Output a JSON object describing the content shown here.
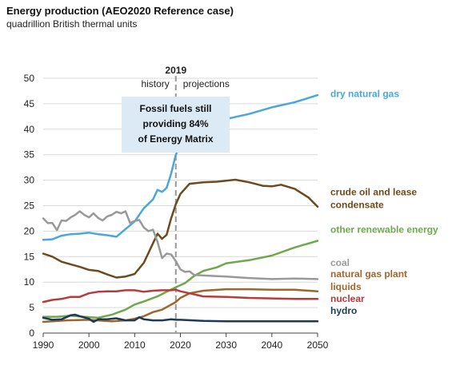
{
  "title": "Energy production (AEO2020 Reference case)",
  "subtitle": "quadrillion British thermal units",
  "divider": {
    "year_label": "2019",
    "left_label": "history",
    "right_label": "projections"
  },
  "callout": {
    "lines": [
      "Fossil fuels still",
      "providing 84%",
      "of Energy Matrix"
    ],
    "color": "#dceaf6"
  },
  "chart_data": {
    "type": "line",
    "title": "Energy production (AEO2020 Reference case)",
    "ylabel": "quadrillion British thermal units",
    "xlim": [
      1990,
      2050
    ],
    "ylim": [
      0,
      50
    ],
    "xticks": [
      1990,
      2000,
      2010,
      2020,
      2030,
      2040,
      2050
    ],
    "yticks": [
      0,
      5,
      10,
      15,
      20,
      25,
      30,
      35,
      40,
      45,
      50
    ],
    "grid": true,
    "divider_x": 2019,
    "series": [
      {
        "name": "dry natural gas",
        "color": "#4aa8d8",
        "points": [
          [
            1990,
            18.3
          ],
          [
            1992,
            18.4
          ],
          [
            1994,
            19.1
          ],
          [
            1996,
            19.4
          ],
          [
            1998,
            19.5
          ],
          [
            2000,
            19.7
          ],
          [
            2002,
            19.4
          ],
          [
            2004,
            19.2
          ],
          [
            2006,
            18.9
          ],
          [
            2008,
            20.4
          ],
          [
            2010,
            21.9
          ],
          [
            2012,
            24.5
          ],
          [
            2014,
            26.2
          ],
          [
            2015,
            28.1
          ],
          [
            2016,
            27.7
          ],
          [
            2017,
            28.5
          ],
          [
            2018,
            31.4
          ],
          [
            2019,
            35.0
          ],
          [
            2020,
            37.0
          ],
          [
            2022,
            39.0
          ],
          [
            2025,
            40.5
          ],
          [
            2030,
            42.0
          ],
          [
            2035,
            43.0
          ],
          [
            2040,
            44.3
          ],
          [
            2045,
            45.3
          ],
          [
            2050,
            46.7
          ]
        ]
      },
      {
        "name": "crude oil and lease condensate",
        "color": "#6b4a1c",
        "points": [
          [
            1990,
            15.6
          ],
          [
            1992,
            15.0
          ],
          [
            1994,
            14.0
          ],
          [
            1996,
            13.5
          ],
          [
            1998,
            13.0
          ],
          [
            2000,
            12.4
          ],
          [
            2002,
            12.2
          ],
          [
            2004,
            11.5
          ],
          [
            2006,
            10.9
          ],
          [
            2008,
            11.1
          ],
          [
            2010,
            11.6
          ],
          [
            2012,
            13.8
          ],
          [
            2014,
            17.6
          ],
          [
            2015,
            19.5
          ],
          [
            2016,
            18.5
          ],
          [
            2017,
            19.3
          ],
          [
            2018,
            22.6
          ],
          [
            2019,
            25.3
          ],
          [
            2020,
            27.3
          ],
          [
            2022,
            29.3
          ],
          [
            2025,
            29.6
          ],
          [
            2028,
            29.7
          ],
          [
            2030,
            29.9
          ],
          [
            2032,
            30.1
          ],
          [
            2035,
            29.6
          ],
          [
            2038,
            28.9
          ],
          [
            2040,
            28.8
          ],
          [
            2042,
            29.1
          ],
          [
            2045,
            28.3
          ],
          [
            2048,
            26.6
          ],
          [
            2050,
            24.8
          ]
        ]
      },
      {
        "name": "other renewable energy",
        "color": "#6fa84a",
        "points": [
          [
            1990,
            3.2
          ],
          [
            1993,
            3.2
          ],
          [
            1996,
            3.4
          ],
          [
            1999,
            3.2
          ],
          [
            2002,
            3.0
          ],
          [
            2005,
            3.6
          ],
          [
            2008,
            4.6
          ],
          [
            2010,
            5.6
          ],
          [
            2012,
            6.2
          ],
          [
            2015,
            7.2
          ],
          [
            2017,
            8.1
          ],
          [
            2019,
            9.0
          ],
          [
            2021,
            9.8
          ],
          [
            2023,
            11.2
          ],
          [
            2025,
            12.2
          ],
          [
            2028,
            12.9
          ],
          [
            2030,
            13.7
          ],
          [
            2035,
            14.3
          ],
          [
            2040,
            15.2
          ],
          [
            2045,
            16.8
          ],
          [
            2050,
            18.1
          ]
        ]
      },
      {
        "name": "coal",
        "color": "#999999",
        "points": [
          [
            1990,
            22.5
          ],
          [
            1991,
            21.6
          ],
          [
            1992,
            21.6
          ],
          [
            1993,
            20.2
          ],
          [
            1994,
            22.1
          ],
          [
            1995,
            22.0
          ],
          [
            1996,
            22.7
          ],
          [
            1997,
            23.2
          ],
          [
            1998,
            23.9
          ],
          [
            1999,
            23.2
          ],
          [
            2000,
            22.7
          ],
          [
            2001,
            23.5
          ],
          [
            2002,
            22.6
          ],
          [
            2003,
            22.1
          ],
          [
            2004,
            22.9
          ],
          [
            2005,
            23.2
          ],
          [
            2006,
            23.8
          ],
          [
            2007,
            23.5
          ],
          [
            2008,
            23.9
          ],
          [
            2009,
            21.6
          ],
          [
            2010,
            22.0
          ],
          [
            2011,
            22.2
          ],
          [
            2012,
            20.7
          ],
          [
            2013,
            20.0
          ],
          [
            2014,
            20.3
          ],
          [
            2015,
            17.9
          ],
          [
            2016,
            14.7
          ],
          [
            2017,
            15.6
          ],
          [
            2018,
            15.4
          ],
          [
            2019,
            14.1
          ],
          [
            2020,
            12.5
          ],
          [
            2021,
            12.0
          ],
          [
            2022,
            12.1
          ],
          [
            2023,
            11.4
          ],
          [
            2025,
            11.3
          ],
          [
            2030,
            11.1
          ],
          [
            2035,
            10.8
          ],
          [
            2040,
            10.6
          ],
          [
            2045,
            10.7
          ],
          [
            2050,
            10.6
          ]
        ]
      },
      {
        "name": "natural gas plant liquids",
        "color": "#a0652a",
        "points": [
          [
            1990,
            2.2
          ],
          [
            1995,
            2.5
          ],
          [
            2000,
            2.6
          ],
          [
            2005,
            2.3
          ],
          [
            2008,
            2.5
          ],
          [
            2010,
            2.8
          ],
          [
            2012,
            3.3
          ],
          [
            2014,
            4.1
          ],
          [
            2016,
            4.6
          ],
          [
            2018,
            5.6
          ],
          [
            2019,
            6.1
          ],
          [
            2020,
            6.9
          ],
          [
            2022,
            7.8
          ],
          [
            2025,
            8.3
          ],
          [
            2030,
            8.6
          ],
          [
            2035,
            8.6
          ],
          [
            2040,
            8.5
          ],
          [
            2045,
            8.5
          ],
          [
            2050,
            8.2
          ]
        ]
      },
      {
        "name": "nuclear",
        "color": "#b83b3b",
        "points": [
          [
            1990,
            6.1
          ],
          [
            1992,
            6.5
          ],
          [
            1994,
            6.7
          ],
          [
            1996,
            7.1
          ],
          [
            1998,
            7.1
          ],
          [
            2000,
            7.8
          ],
          [
            2002,
            8.1
          ],
          [
            2004,
            8.2
          ],
          [
            2006,
            8.2
          ],
          [
            2008,
            8.4
          ],
          [
            2010,
            8.4
          ],
          [
            2012,
            8.1
          ],
          [
            2014,
            8.3
          ],
          [
            2016,
            8.4
          ],
          [
            2018,
            8.4
          ],
          [
            2019,
            8.5
          ],
          [
            2020,
            8.2
          ],
          [
            2022,
            7.8
          ],
          [
            2025,
            7.2
          ],
          [
            2030,
            7.1
          ],
          [
            2035,
            6.9
          ],
          [
            2040,
            6.8
          ],
          [
            2045,
            6.7
          ],
          [
            2050,
            6.7
          ]
        ]
      },
      {
        "name": "hydro",
        "color": "#1c3a57",
        "points": [
          [
            1990,
            3.0
          ],
          [
            1992,
            2.6
          ],
          [
            1994,
            2.7
          ],
          [
            1996,
            3.5
          ],
          [
            1997,
            3.6
          ],
          [
            1998,
            3.3
          ],
          [
            2000,
            2.8
          ],
          [
            2001,
            2.2
          ],
          [
            2002,
            2.7
          ],
          [
            2004,
            2.7
          ],
          [
            2006,
            2.9
          ],
          [
            2008,
            2.5
          ],
          [
            2010,
            2.5
          ],
          [
            2011,
            3.1
          ],
          [
            2012,
            2.7
          ],
          [
            2014,
            2.5
          ],
          [
            2016,
            2.5
          ],
          [
            2018,
            2.7
          ],
          [
            2019,
            2.6
          ],
          [
            2020,
            2.6
          ],
          [
            2025,
            2.4
          ],
          [
            2030,
            2.3
          ],
          [
            2040,
            2.3
          ],
          [
            2050,
            2.3
          ]
        ]
      }
    ]
  },
  "legend": [
    {
      "series": "dry natural gas",
      "lines": [
        "dry natural gas"
      ],
      "color": "#4aa8d8"
    },
    {
      "series": "crude oil and lease condensate",
      "lines": [
        "crude oil and lease",
        "condensate"
      ],
      "color": "#6b4a1c"
    },
    {
      "series": "other renewable energy",
      "lines": [
        "other renewable energy"
      ],
      "color": "#6fa84a"
    },
    {
      "series": "coal",
      "lines": [
        "coal"
      ],
      "color": "#999999"
    },
    {
      "series": "natural gas plant liquids",
      "lines": [
        "natural gas plant",
        "liquids"
      ],
      "color": "#a0652a"
    },
    {
      "series": "nuclear",
      "lines": [
        "nuclear"
      ],
      "color": "#b83b3b"
    },
    {
      "series": "hydro",
      "lines": [
        "hydro"
      ],
      "color": "#1c3a57"
    }
  ]
}
